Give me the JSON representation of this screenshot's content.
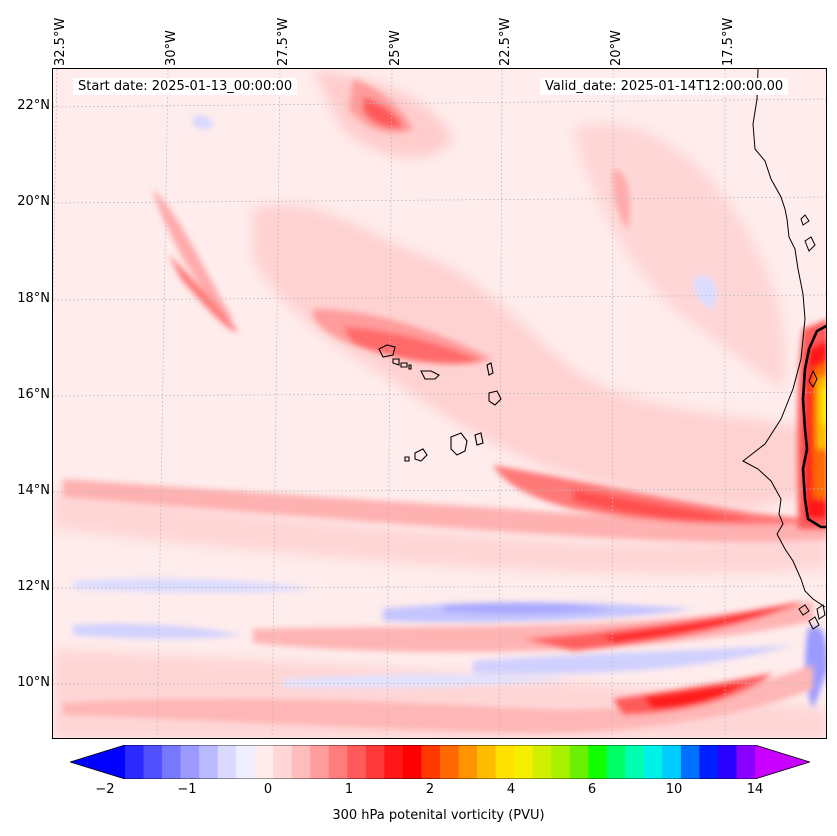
{
  "map": {
    "lon_labels": [
      "32.5°W",
      "30°W",
      "27.5°W",
      "25°W",
      "22.5°W",
      "20°W",
      "17.5°W"
    ],
    "lat_labels": [
      "22°N",
      "20°N",
      "18°N",
      "16°N",
      "14°N",
      "12°N",
      "10°N"
    ],
    "header": {
      "start_date": "Start date: 2025-01-13_00:00:00",
      "valid_date": "Valid_date: 2025-01-14T12:00:00.00"
    },
    "field": "300 hPa potential vorticity",
    "extent": {
      "lon": [
        -32.8,
        -15.0
      ],
      "lat": [
        8.8,
        22.8
      ]
    }
  },
  "colorbar": {
    "ticks": [
      "−2",
      "−1",
      "0",
      "1",
      "2",
      "4",
      "6",
      "10",
      "14"
    ],
    "label": "300 hPa potenital vorticity (PVU)",
    "colors": [
      "#0000ff",
      "#2a2aff",
      "#5050ff",
      "#7878ff",
      "#9a9aff",
      "#babaff",
      "#dadaff",
      "#efefff",
      "#ffecec",
      "#ffd6d6",
      "#ffbcbc",
      "#ff9c9c",
      "#ff7c7c",
      "#ff5a5a",
      "#ff3838",
      "#ff1616",
      "#ff0000",
      "#ff3800",
      "#ff6a00",
      "#ff9400",
      "#ffbc00",
      "#ffe000",
      "#f4f000",
      "#d0f000",
      "#a8f000",
      "#6af000",
      "#12ff00",
      "#00ff66",
      "#00ffb0",
      "#00f0e8",
      "#00ccff",
      "#0070ff",
      "#0020ff",
      "#2a00ff",
      "#8a00ff",
      "#c800ff"
    ]
  }
}
